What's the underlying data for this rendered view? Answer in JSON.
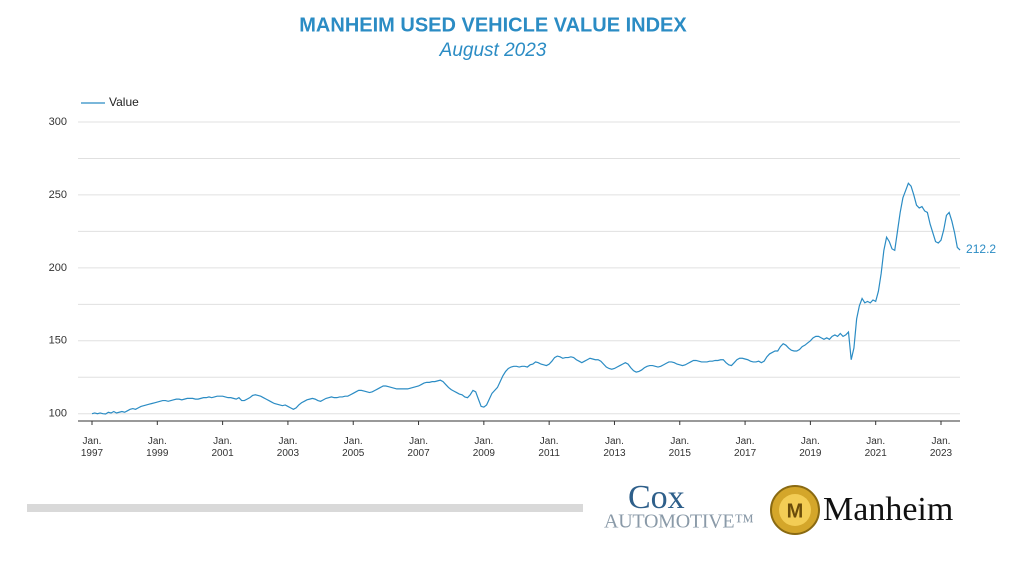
{
  "chart_data": {
    "type": "line",
    "title": "MANHEIM USED VEHICLE VALUE INDEX",
    "subtitle": "August 2023",
    "x": [
      "1997-01",
      "1997-02",
      "1997-03",
      "1997-04",
      "1997-05",
      "1997-06",
      "1997-07",
      "1997-08",
      "1997-09",
      "1997-10",
      "1997-11",
      "1997-12",
      "1998-01",
      "1998-02",
      "1998-03",
      "1998-04",
      "1998-05",
      "1998-06",
      "1998-07",
      "1998-08",
      "1998-09",
      "1998-10",
      "1998-11",
      "1998-12",
      "1999-01",
      "1999-02",
      "1999-03",
      "1999-04",
      "1999-05",
      "1999-06",
      "1999-07",
      "1999-08",
      "1999-09",
      "1999-10",
      "1999-11",
      "1999-12",
      "2000-01",
      "2000-02",
      "2000-03",
      "2000-04",
      "2000-05",
      "2000-06",
      "2000-07",
      "2000-08",
      "2000-09",
      "2000-10",
      "2000-11",
      "2000-12",
      "2001-01",
      "2001-02",
      "2001-03",
      "2001-04",
      "2001-05",
      "2001-06",
      "2001-07",
      "2001-08",
      "2001-09",
      "2001-10",
      "2001-11",
      "2001-12",
      "2002-01",
      "2002-02",
      "2002-03",
      "2002-04",
      "2002-05",
      "2002-06",
      "2002-07",
      "2002-08",
      "2002-09",
      "2002-10",
      "2002-11",
      "2002-12",
      "2003-01",
      "2003-02",
      "2003-03",
      "2003-04",
      "2003-05",
      "2003-06",
      "2003-07",
      "2003-08",
      "2003-09",
      "2003-10",
      "2003-11",
      "2003-12",
      "2004-01",
      "2004-02",
      "2004-03",
      "2004-04",
      "2004-05",
      "2004-06",
      "2004-07",
      "2004-08",
      "2004-09",
      "2004-10",
      "2004-11",
      "2004-12",
      "2005-01",
      "2005-02",
      "2005-03",
      "2005-04",
      "2005-05",
      "2005-06",
      "2005-07",
      "2005-08",
      "2005-09",
      "2005-10",
      "2005-11",
      "2005-12",
      "2006-01",
      "2006-02",
      "2006-03",
      "2006-04",
      "2006-05",
      "2006-06",
      "2006-07",
      "2006-08",
      "2006-09",
      "2006-10",
      "2006-11",
      "2006-12",
      "2007-01",
      "2007-02",
      "2007-03",
      "2007-04",
      "2007-05",
      "2007-06",
      "2007-07",
      "2007-08",
      "2007-09",
      "2007-10",
      "2007-11",
      "2007-12",
      "2008-01",
      "2008-02",
      "2008-03",
      "2008-04",
      "2008-05",
      "2008-06",
      "2008-07",
      "2008-08",
      "2008-09",
      "2008-10",
      "2008-11",
      "2008-12",
      "2009-01",
      "2009-02",
      "2009-03",
      "2009-04",
      "2009-05",
      "2009-06",
      "2009-07",
      "2009-08",
      "2009-09",
      "2009-10",
      "2009-11",
      "2009-12",
      "2010-01",
      "2010-02",
      "2010-03",
      "2010-04",
      "2010-05",
      "2010-06",
      "2010-07",
      "2010-08",
      "2010-09",
      "2010-10",
      "2010-11",
      "2010-12",
      "2011-01",
      "2011-02",
      "2011-03",
      "2011-04",
      "2011-05",
      "2011-06",
      "2011-07",
      "2011-08",
      "2011-09",
      "2011-10",
      "2011-11",
      "2011-12",
      "2012-01",
      "2012-02",
      "2012-03",
      "2012-04",
      "2012-05",
      "2012-06",
      "2012-07",
      "2012-08",
      "2012-09",
      "2012-10",
      "2012-11",
      "2012-12",
      "2013-01",
      "2013-02",
      "2013-03",
      "2013-04",
      "2013-05",
      "2013-06",
      "2013-07",
      "2013-08",
      "2013-09",
      "2013-10",
      "2013-11",
      "2013-12",
      "2014-01",
      "2014-02",
      "2014-03",
      "2014-04",
      "2014-05",
      "2014-06",
      "2014-07",
      "2014-08",
      "2014-09",
      "2014-10",
      "2014-11",
      "2014-12",
      "2015-01",
      "2015-02",
      "2015-03",
      "2015-04",
      "2015-05",
      "2015-06",
      "2015-07",
      "2015-08",
      "2015-09",
      "2015-10",
      "2015-11",
      "2015-12",
      "2016-01",
      "2016-02",
      "2016-03",
      "2016-04",
      "2016-05",
      "2016-06",
      "2016-07",
      "2016-08",
      "2016-09",
      "2016-10",
      "2016-11",
      "2016-12",
      "2017-01",
      "2017-02",
      "2017-03",
      "2017-04",
      "2017-05",
      "2017-06",
      "2017-07",
      "2017-08",
      "2017-09",
      "2017-10",
      "2017-11",
      "2017-12",
      "2018-01",
      "2018-02",
      "2018-03",
      "2018-04",
      "2018-05",
      "2018-06",
      "2018-07",
      "2018-08",
      "2018-09",
      "2018-10",
      "2018-11",
      "2018-12",
      "2019-01",
      "2019-02",
      "2019-03",
      "2019-04",
      "2019-05",
      "2019-06",
      "2019-07",
      "2019-08",
      "2019-09",
      "2019-10",
      "2019-11",
      "2019-12",
      "2020-01",
      "2020-02",
      "2020-03",
      "2020-04",
      "2020-05",
      "2020-06",
      "2020-07",
      "2020-08",
      "2020-09",
      "2020-10",
      "2020-11",
      "2020-12",
      "2021-01",
      "2021-02",
      "2021-03",
      "2021-04",
      "2021-05",
      "2021-06",
      "2021-07",
      "2021-08",
      "2021-09",
      "2021-10",
      "2021-11",
      "2021-12",
      "2022-01",
      "2022-02",
      "2022-03",
      "2022-04",
      "2022-05",
      "2022-06",
      "2022-07",
      "2022-08",
      "2022-09",
      "2022-10",
      "2022-11",
      "2022-12",
      "2023-01",
      "2023-02",
      "2023-03",
      "2023-04",
      "2023-05",
      "2023-06",
      "2023-07",
      "2023-08"
    ],
    "series": [
      {
        "name": "Value",
        "color": "#2b8cc4",
        "values": [
          100,
          100.5,
          100,
          100.5,
          100,
          99.8,
          101,
          100.5,
          101.5,
          100.5,
          101,
          101.5,
          101,
          102,
          103,
          103.5,
          103,
          104,
          105,
          105.5,
          106,
          106.5,
          107,
          107.5,
          108,
          108.5,
          109,
          109,
          108.5,
          109,
          109.5,
          110,
          110,
          109.5,
          110,
          110.5,
          110.5,
          110.5,
          110,
          110,
          110.5,
          111,
          111,
          111.5,
          111,
          111.5,
          112,
          112,
          112,
          111.5,
          111,
          111,
          110.5,
          110,
          111,
          109,
          109,
          110,
          111,
          112.5,
          113,
          112.5,
          112,
          111,
          110,
          109,
          108,
          107,
          106.5,
          106,
          105.5,
          106,
          105,
          104,
          103,
          104,
          106,
          107.5,
          108.5,
          109.5,
          110,
          110.5,
          110,
          109,
          108.5,
          109.5,
          110.5,
          111,
          111.5,
          111,
          111,
          111.5,
          111.5,
          112,
          112,
          113,
          114,
          115,
          116,
          116,
          115.5,
          115,
          114.5,
          115,
          116,
          117,
          118,
          119,
          119,
          118.5,
          118,
          117.5,
          117,
          117,
          117,
          117,
          117,
          117.5,
          118,
          118.5,
          119,
          120,
          121,
          121.5,
          121.5,
          122,
          122,
          122.5,
          123,
          122,
          120,
          118,
          116.5,
          115.5,
          114.5,
          113.5,
          113,
          111.5,
          111,
          113,
          116,
          115,
          110,
          105,
          104.5,
          106,
          110,
          114,
          116,
          118,
          122,
          126,
          129,
          131,
          132,
          132.5,
          132.5,
          132,
          132.5,
          132.5,
          132,
          133.5,
          134,
          135.5,
          135,
          134,
          133.5,
          133,
          134,
          136,
          138.5,
          139.5,
          139,
          138,
          138.5,
          138.5,
          139,
          138.5,
          137,
          136,
          135,
          136,
          137,
          138,
          137.5,
          137,
          137,
          136,
          134,
          132,
          131,
          130.5,
          131,
          132,
          133,
          134,
          135,
          134,
          131.5,
          129.5,
          128.5,
          129,
          130,
          131.5,
          132.5,
          133,
          133,
          132.5,
          132,
          132.5,
          133.5,
          134.5,
          135.5,
          135.5,
          135,
          134,
          133.5,
          133,
          133.5,
          134.5,
          135.5,
          136.5,
          136.5,
          136,
          135.5,
          135.5,
          135.5,
          136,
          136,
          136.5,
          136.5,
          137,
          137,
          135,
          133.5,
          133,
          135,
          137,
          138,
          138,
          137.5,
          137,
          136,
          135.5,
          135.5,
          136,
          135,
          136,
          139,
          141,
          142,
          143,
          143,
          146,
          148,
          147,
          145,
          143.5,
          143,
          143,
          144,
          146,
          147,
          148.5,
          150,
          152,
          153,
          153,
          152,
          151,
          152,
          151,
          153,
          154,
          153,
          155,
          153,
          154,
          156,
          137,
          145,
          165,
          174,
          179,
          176,
          177,
          176,
          178,
          177,
          184,
          196,
          212,
          221,
          218,
          213,
          212,
          225,
          238,
          248,
          253,
          258,
          256,
          250,
          243,
          241,
          242,
          239,
          238,
          230,
          224,
          218,
          217,
          219,
          226,
          236,
          238,
          232,
          224,
          214,
          212.2
        ]
      }
    ],
    "ylim": [
      95,
      300
    ],
    "yticks": [
      100,
      150,
      200,
      250,
      300
    ],
    "minor_yticks": [
      125,
      175,
      225,
      275
    ],
    "xticks": [
      {
        "value": "1997-01",
        "label": "Jan. 1997"
      },
      {
        "value": "1999-01",
        "label": "Jan. 1999"
      },
      {
        "value": "2001-01",
        "label": "Jan. 2001"
      },
      {
        "value": "2003-01",
        "label": "Jan. 2003"
      },
      {
        "value": "2005-01",
        "label": "Jan. 2005"
      },
      {
        "value": "2007-01",
        "label": "Jan. 2007"
      },
      {
        "value": "2009-01",
        "label": "Jan. 2009"
      },
      {
        "value": "2011-01",
        "label": "Jan. 2011"
      },
      {
        "value": "2013-01",
        "label": "Jan. 2013"
      },
      {
        "value": "2015-01",
        "label": "Jan. 2015"
      },
      {
        "value": "2017-01",
        "label": "Jan. 2017"
      },
      {
        "value": "2019-01",
        "label": "Jan. 2019"
      },
      {
        "value": "2021-01",
        "label": "Jan. 2021"
      },
      {
        "value": "2023-01",
        "label": "Jan. 2023"
      }
    ],
    "grid": true,
    "legend": "top-left"
  },
  "branding": {
    "cox": "Cox",
    "automotive": "AUTOMOTIVE™",
    "manheim": "Manheim"
  }
}
